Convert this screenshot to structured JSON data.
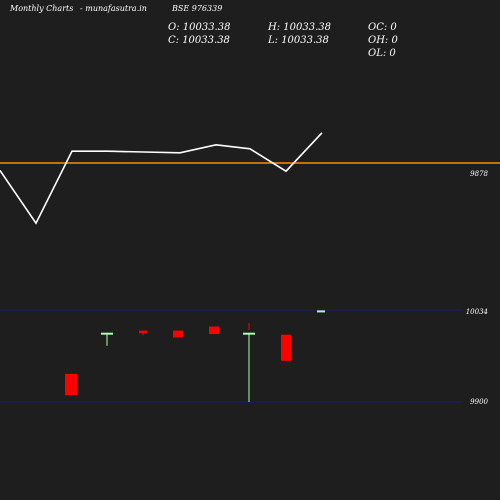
{
  "header": {
    "left": "Monthly Charts",
    "middle": "- munafasutra.in",
    "right": "BSE 976339"
  },
  "ohlc": {
    "o": "O: 10033.38",
    "c": "C: 10033.38",
    "h": "H: 10033.38",
    "l": "L: 10033.38",
    "oc": "OC: 0",
    "oh": "OH: 0",
    "ol": "OL: 0"
  },
  "colors": {
    "background": "#1e1e1e",
    "line": "#ffffff",
    "reference_line": "#ff8c00",
    "up": "#00ff00",
    "down": "#ff0000",
    "flat": "#aaffaa",
    "level_line": "#1a1a7a"
  },
  "chart_data": [
    {
      "type": "line",
      "series": [
        {
          "values": [
            112,
            46,
            136,
            136,
            135,
            134,
            144,
            139,
            111,
            159
          ]
        }
      ],
      "reference_line": {
        "value": 9878,
        "label": "9878"
      }
    },
    {
      "type": "candlestick",
      "candles": [
        {
          "open": 9941,
          "high": 9941,
          "low": 9910,
          "close": 9910
        },
        {
          "open": 10001,
          "high": 10001,
          "low": 9982,
          "close": 10001
        },
        {
          "open": 10004,
          "high": 10004,
          "low": 9997,
          "close": 10000
        },
        {
          "open": 10004,
          "high": 10004,
          "low": 9994,
          "close": 9994
        },
        {
          "open": 10010,
          "high": 10010,
          "low": 9999,
          "close": 9999
        },
        {
          "open": 10015,
          "high": 10015,
          "low": 10005,
          "close": 10005
        },
        {
          "open": 10001,
          "high": 10001,
          "low": 9900,
          "close": 10001
        },
        {
          "open": 9998,
          "high": 9998,
          "low": 9960,
          "close": 9960
        },
        {
          "open": 10033.38,
          "high": 10033.38,
          "low": 10033.38,
          "close": 10033.38
        }
      ],
      "yaxis": {
        "ticks": [
          10034,
          9900
        ]
      }
    }
  ]
}
